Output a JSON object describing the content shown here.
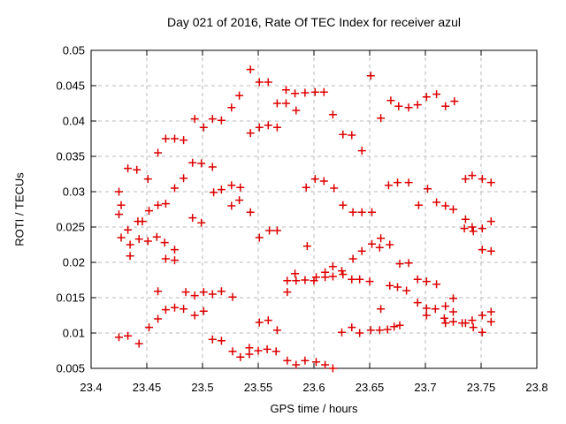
{
  "page": {
    "title": "Day 021 of 2016, Rate Of TEC Index for receiver azul"
  },
  "colors": {
    "marker": "#dd0000",
    "grid": "#b8b8b8",
    "axis": "#000000",
    "background": "#ffffff"
  },
  "chart_data": {
    "type": "scatter",
    "title": "Day 021 of 2016, Rate Of TEC Index for receiver azul",
    "xlabel": "GPS time / hours",
    "ylabel": "ROTI / TECUs",
    "xlim": [
      23.4,
      23.8
    ],
    "ylim": [
      0.005,
      0.05
    ],
    "xtick_values": [
      23.4,
      23.45,
      23.5,
      23.55,
      23.6,
      23.65,
      23.7,
      23.75,
      23.8
    ],
    "xtick_labels": [
      "23.4",
      "23.45",
      "23.5",
      "23.55",
      "23.6",
      "23.65",
      "23.7",
      "23.75",
      "23.8"
    ],
    "ytick_values": [
      0.005,
      0.01,
      0.015,
      0.02,
      0.025,
      0.03,
      0.035,
      0.04,
      0.045,
      0.05
    ],
    "ytick_labels": [
      "0.005",
      "0.01",
      "0.015",
      "0.02",
      "0.025",
      "0.03",
      "0.035",
      "0.04",
      "0.045",
      "0.05"
    ],
    "grid": true,
    "legend": "none",
    "marker": {
      "shape": "plus",
      "size": 9,
      "color": "#dd0000"
    },
    "series": [
      {
        "name": "ROTI",
        "points": [
          [
            23.46,
            0.0355
          ],
          [
            23.467,
            0.0375
          ],
          [
            23.475,
            0.0375
          ],
          [
            23.483,
            0.0373
          ],
          [
            23.493,
            0.0403
          ],
          [
            23.501,
            0.0391
          ],
          [
            23.509,
            0.0403
          ],
          [
            23.517,
            0.0401
          ],
          [
            23.526,
            0.0419
          ],
          [
            23.533,
            0.0436
          ],
          [
            23.543,
            0.0473
          ],
          [
            23.551,
            0.0455
          ],
          [
            23.559,
            0.0455
          ],
          [
            23.575,
            0.0444
          ],
          [
            23.583,
            0.0439
          ],
          [
            23.592,
            0.044
          ],
          [
            23.601,
            0.0441
          ],
          [
            23.609,
            0.0441
          ],
          [
            23.651,
            0.0464
          ],
          [
            23.567,
            0.0425
          ],
          [
            23.575,
            0.0425
          ],
          [
            23.584,
            0.0415
          ],
          [
            23.617,
            0.0409
          ],
          [
            23.66,
            0.0404
          ],
          [
            23.543,
            0.0383
          ],
          [
            23.551,
            0.0391
          ],
          [
            23.559,
            0.0394
          ],
          [
            23.567,
            0.0391
          ],
          [
            23.626,
            0.0381
          ],
          [
            23.634,
            0.038
          ],
          [
            23.643,
            0.0358
          ],
          [
            23.669,
            0.0429
          ],
          [
            23.676,
            0.0421
          ],
          [
            23.685,
            0.0419
          ],
          [
            23.693,
            0.0423
          ],
          [
            23.701,
            0.0434
          ],
          [
            23.71,
            0.0438
          ],
          [
            23.718,
            0.0421
          ],
          [
            23.726,
            0.0428
          ],
          [
            23.433,
            0.0333
          ],
          [
            23.441,
            0.0331
          ],
          [
            23.451,
            0.0318
          ],
          [
            23.491,
            0.0341
          ],
          [
            23.499,
            0.034
          ],
          [
            23.509,
            0.0335
          ],
          [
            23.483,
            0.0319
          ],
          [
            23.475,
            0.0305
          ],
          [
            23.425,
            0.03
          ],
          [
            23.427,
            0.0281
          ],
          [
            23.425,
            0.0268
          ],
          [
            23.46,
            0.0281
          ],
          [
            23.467,
            0.0283
          ],
          [
            23.452,
            0.0273
          ],
          [
            23.442,
            0.0258
          ],
          [
            23.446,
            0.0258
          ],
          [
            23.433,
            0.0246
          ],
          [
            23.427,
            0.0235
          ],
          [
            23.435,
            0.0225
          ],
          [
            23.443,
            0.0233
          ],
          [
            23.451,
            0.023
          ],
          [
            23.459,
            0.0236
          ],
          [
            23.466,
            0.0228
          ],
          [
            23.435,
            0.0209
          ],
          [
            23.475,
            0.0218
          ],
          [
            23.475,
            0.0203
          ],
          [
            23.467,
            0.0205
          ],
          [
            23.491,
            0.0263
          ],
          [
            23.499,
            0.0256
          ],
          [
            23.51,
            0.0299
          ],
          [
            23.517,
            0.0303
          ],
          [
            23.526,
            0.0309
          ],
          [
            23.534,
            0.0306
          ],
          [
            23.533,
            0.0288
          ],
          [
            23.526,
            0.028
          ],
          [
            23.543,
            0.0271
          ],
          [
            23.551,
            0.0235
          ],
          [
            23.56,
            0.0245
          ],
          [
            23.567,
            0.0245
          ],
          [
            23.594,
            0.0223
          ],
          [
            23.593,
            0.0306
          ],
          [
            23.601,
            0.0318
          ],
          [
            23.609,
            0.0315
          ],
          [
            23.618,
            0.0305
          ],
          [
            23.626,
            0.0281
          ],
          [
            23.635,
            0.0271
          ],
          [
            23.643,
            0.0271
          ],
          [
            23.652,
            0.0271
          ],
          [
            23.635,
            0.0205
          ],
          [
            23.643,
            0.0216
          ],
          [
            23.652,
            0.0226
          ],
          [
            23.659,
            0.0221
          ],
          [
            23.66,
            0.0234
          ],
          [
            23.668,
            0.0225
          ],
          [
            23.667,
            0.0309
          ],
          [
            23.675,
            0.0313
          ],
          [
            23.685,
            0.0313
          ],
          [
            23.702,
            0.0304
          ],
          [
            23.694,
            0.0281
          ],
          [
            23.71,
            0.0285
          ],
          [
            23.718,
            0.028
          ],
          [
            23.725,
            0.0275
          ],
          [
            23.736,
            0.0318
          ],
          [
            23.742,
            0.0323
          ],
          [
            23.751,
            0.0318
          ],
          [
            23.759,
            0.0313
          ],
          [
            23.736,
            0.0261
          ],
          [
            23.735,
            0.0248
          ],
          [
            23.742,
            0.025
          ],
          [
            23.743,
            0.0244
          ],
          [
            23.751,
            0.0248
          ],
          [
            23.759,
            0.0258
          ],
          [
            23.751,
            0.0218
          ],
          [
            23.759,
            0.0216
          ],
          [
            23.46,
            0.0159
          ],
          [
            23.485,
            0.0158
          ],
          [
            23.493,
            0.0153
          ],
          [
            23.501,
            0.0158
          ],
          [
            23.509,
            0.0155
          ],
          [
            23.517,
            0.0159
          ],
          [
            23.527,
            0.0151
          ],
          [
            23.467,
            0.0133
          ],
          [
            23.475,
            0.0136
          ],
          [
            23.483,
            0.0134
          ],
          [
            23.493,
            0.0125
          ],
          [
            23.501,
            0.0131
          ],
          [
            23.46,
            0.012
          ],
          [
            23.452,
            0.0108
          ],
          [
            23.425,
            0.0094
          ],
          [
            23.433,
            0.0096
          ],
          [
            23.443,
            0.0085
          ],
          [
            23.509,
            0.0091
          ],
          [
            23.517,
            0.0089
          ],
          [
            23.527,
            0.0074
          ],
          [
            23.534,
            0.0066
          ],
          [
            23.542,
            0.0079
          ],
          [
            23.542,
            0.007
          ],
          [
            23.55,
            0.0075
          ],
          [
            23.558,
            0.0077
          ],
          [
            23.566,
            0.0074
          ],
          [
            23.576,
            0.0174
          ],
          [
            23.576,
            0.0158
          ],
          [
            23.583,
            0.0184
          ],
          [
            23.584,
            0.0174
          ],
          [
            23.592,
            0.0175
          ],
          [
            23.6,
            0.0174
          ],
          [
            23.602,
            0.0179
          ],
          [
            23.61,
            0.0179
          ],
          [
            23.61,
            0.0186
          ],
          [
            23.617,
            0.0194
          ],
          [
            23.617,
            0.018
          ],
          [
            23.625,
            0.0188
          ],
          [
            23.626,
            0.0183
          ],
          [
            23.634,
            0.0176
          ],
          [
            23.641,
            0.0176
          ],
          [
            23.65,
            0.0173
          ],
          [
            23.551,
            0.0115
          ],
          [
            23.559,
            0.0118
          ],
          [
            23.567,
            0.0104
          ],
          [
            23.576,
            0.0061
          ],
          [
            23.584,
            0.0055
          ],
          [
            23.592,
            0.0061
          ],
          [
            23.602,
            0.0059
          ],
          [
            23.61,
            0.0055
          ],
          [
            23.617,
            0.005
          ],
          [
            23.625,
            0.0101
          ],
          [
            23.634,
            0.0108
          ],
          [
            23.641,
            0.01
          ],
          [
            23.651,
            0.0104
          ],
          [
            23.659,
            0.0104
          ],
          [
            23.66,
            0.0134
          ],
          [
            23.668,
            0.0167
          ],
          [
            23.675,
            0.0165
          ],
          [
            23.683,
            0.016
          ],
          [
            23.677,
            0.0198
          ],
          [
            23.685,
            0.0199
          ],
          [
            23.693,
            0.0176
          ],
          [
            23.701,
            0.0173
          ],
          [
            23.71,
            0.0169
          ],
          [
            23.693,
            0.0143
          ],
          [
            23.701,
            0.0135
          ],
          [
            23.709,
            0.0134
          ],
          [
            23.701,
            0.0125
          ],
          [
            23.718,
            0.0138
          ],
          [
            23.725,
            0.0149
          ],
          [
            23.717,
            0.0121
          ],
          [
            23.718,
            0.0114
          ],
          [
            23.725,
            0.013
          ],
          [
            23.725,
            0.0116
          ],
          [
            23.733,
            0.0114
          ],
          [
            23.736,
            0.0114
          ],
          [
            23.742,
            0.0118
          ],
          [
            23.743,
            0.0108
          ],
          [
            23.751,
            0.0125
          ],
          [
            23.751,
            0.0101
          ],
          [
            23.759,
            0.013
          ],
          [
            23.759,
            0.0116
          ],
          [
            23.666,
            0.0105
          ],
          [
            23.672,
            0.0109
          ],
          [
            23.677,
            0.0111
          ]
        ]
      }
    ]
  }
}
